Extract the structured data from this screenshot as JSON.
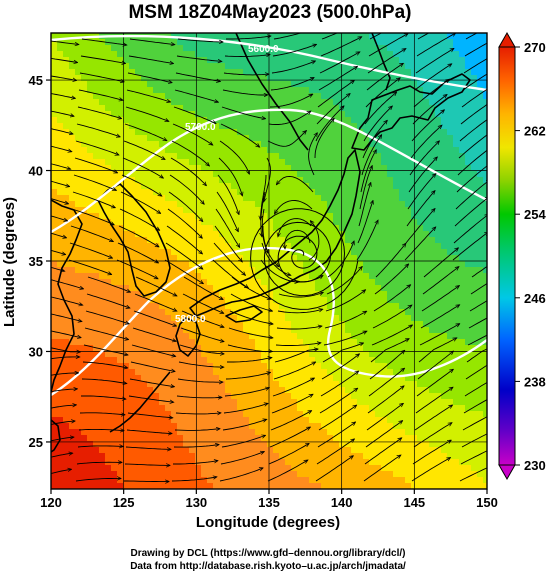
{
  "title": "MSM 18Z04May2023 (500.0hPa)",
  "x_axis": {
    "label": "Longitude (degrees)",
    "ticks": [
      "120",
      "125",
      "130",
      "135",
      "140",
      "145",
      "150"
    ],
    "range": [
      120,
      150
    ]
  },
  "y_axis": {
    "label": "Latitude  (degrees)",
    "ticks": [
      "25",
      "30",
      "35",
      "40",
      "45"
    ],
    "range": [
      22.4,
      47.6
    ]
  },
  "colorbar": {
    "ticks": [
      "230",
      "238",
      "246",
      "254",
      "262",
      "270"
    ],
    "range": [
      230,
      270
    ],
    "colors": [
      "#c800c8",
      "#0000c8",
      "#00a0ff",
      "#00c8c8",
      "#00c800",
      "#50d200",
      "#c8e600",
      "#ffd200",
      "#ff8c00",
      "#ff3c00",
      "#e60000"
    ]
  },
  "contours": [
    {
      "label": "5600.0"
    },
    {
      "label": "5700.0"
    },
    {
      "label": "5800.0"
    }
  ],
  "field": {
    "low_center": {
      "lon": 137.2,
      "lat": 35.3
    },
    "background_color": "#ff8c1e"
  },
  "credits": {
    "line1": "Drawing by DCL (https://www.gfd–dennou.org/library/dcl/)",
    "line2": "Data from http://database.rish.kyoto–u.ac.jp/arch/jmadata/"
  }
}
